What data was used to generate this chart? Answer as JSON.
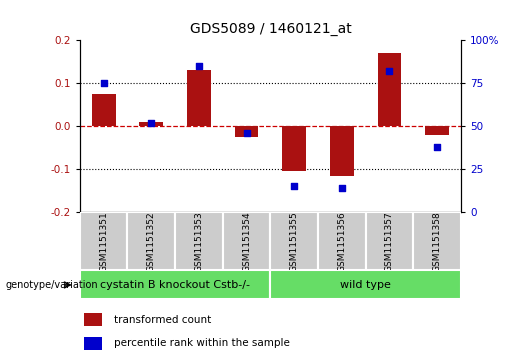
{
  "title": "GDS5089 / 1460121_at",
  "samples": [
    "GSM1151351",
    "GSM1151352",
    "GSM1151353",
    "GSM1151354",
    "GSM1151355",
    "GSM1151356",
    "GSM1151357",
    "GSM1151358"
  ],
  "transformed_count": [
    0.075,
    0.01,
    0.13,
    -0.025,
    -0.105,
    -0.115,
    0.17,
    -0.02
  ],
  "percentile_rank": [
    75,
    52,
    85,
    46,
    15,
    14,
    82,
    38
  ],
  "ylim_left": [
    -0.2,
    0.2
  ],
  "ylim_right": [
    0,
    100
  ],
  "yticks_left": [
    -0.2,
    -0.1,
    0.0,
    0.1,
    0.2
  ],
  "yticks_right": [
    0,
    25,
    50,
    75,
    100
  ],
  "ytick_labels_right": [
    "0",
    "25",
    "50",
    "75",
    "100%"
  ],
  "bar_color": "#aa1111",
  "dot_color": "#0000cc",
  "hline_color": "#cc0000",
  "hline_style": "--",
  "dotline_color": "black",
  "dotline_style": ":",
  "group1_label": "cystatin B knockout Cstb-/-",
  "group2_label": "wild type",
  "group1_indices": [
    0,
    1,
    2,
    3
  ],
  "group2_indices": [
    4,
    5,
    6,
    7
  ],
  "group_color": "#66dd66",
  "genotype_label": "genotype/variation",
  "legend_bar_label": "transformed count",
  "legend_dot_label": "percentile rank within the sample",
  "bar_width": 0.5,
  "tick_label_area_color": "#cccccc",
  "title_fontsize": 10,
  "label_fontsize": 7.5,
  "sample_fontsize": 6.5,
  "group_fontsize": 8,
  "legend_fontsize": 7.5
}
